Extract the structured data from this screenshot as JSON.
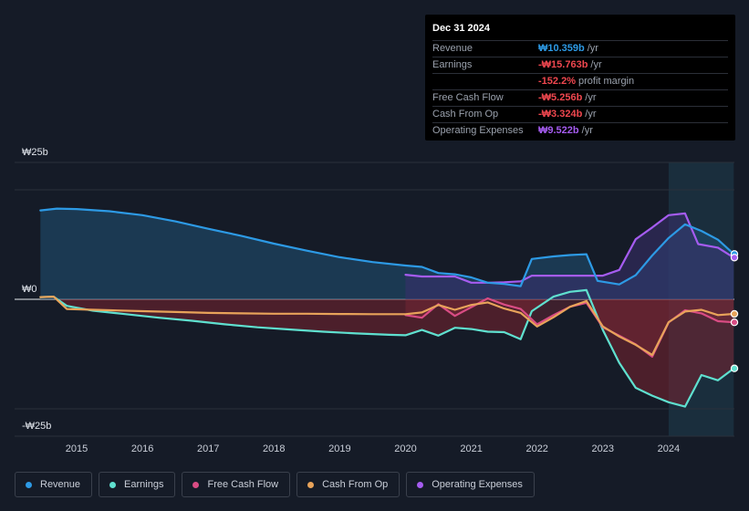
{
  "tooltip": {
    "date": "Dec 31 2024",
    "rows": [
      {
        "label": "Revenue",
        "value": "₩10.359b",
        "unit": "/yr",
        "color": "#2d9ae5"
      },
      {
        "label": "Earnings",
        "value": "-₩15.763b",
        "unit": "/yr",
        "color": "#f0474f"
      },
      {
        "label": "",
        "value": "-152.2%",
        "unit": "profit margin",
        "color": "#f0474f"
      },
      {
        "label": "Free Cash Flow",
        "value": "-₩5.256b",
        "unit": "/yr",
        "color": "#f0474f"
      },
      {
        "label": "Cash From Op",
        "value": "-₩3.324b",
        "unit": "/yr",
        "color": "#f0474f"
      },
      {
        "label": "Operating Expenses",
        "value": "₩9.522b",
        "unit": "/yr",
        "color": "#a55cf0"
      }
    ]
  },
  "legend": [
    {
      "label": "Revenue",
      "color": "#2d9ae5"
    },
    {
      "label": "Earnings",
      "color": "#5fe0cf"
    },
    {
      "label": "Free Cash Flow",
      "color": "#d94c84"
    },
    {
      "label": "Cash From Op",
      "color": "#e8a35a"
    },
    {
      "label": "Operating Expenses",
      "color": "#a55cf0"
    }
  ],
  "chart_data": {
    "type": "line",
    "title": "",
    "x_unit": "year",
    "xlim": [
      2014.45,
      2024.99
    ],
    "ylim": [
      -25,
      25
    ],
    "y_tick_labels": [
      {
        "value": 25,
        "label": "₩25b"
      },
      {
        "value": 0,
        "label": "₩0"
      },
      {
        "value": -25,
        "label": "-₩25b"
      }
    ],
    "x_tick_labels": [
      "2015",
      "2016",
      "2017",
      "2018",
      "2019",
      "2020",
      "2021",
      "2022",
      "2023",
      "2024"
    ],
    "highlight_region": [
      2024.0,
      2024.99
    ],
    "series": [
      {
        "name": "Revenue",
        "color": "#2d9ae5",
        "points": [
          [
            2014.45,
            20.3
          ],
          [
            2014.7,
            20.7
          ],
          [
            2015.0,
            20.6
          ],
          [
            2015.5,
            20.1
          ],
          [
            2016.0,
            19.2
          ],
          [
            2016.5,
            17.8
          ],
          [
            2017.0,
            16.1
          ],
          [
            2017.5,
            14.5
          ],
          [
            2018.0,
            12.7
          ],
          [
            2018.5,
            11.1
          ],
          [
            2019.0,
            9.6
          ],
          [
            2019.5,
            8.5
          ],
          [
            2020.0,
            7.7
          ],
          [
            2020.25,
            7.4
          ],
          [
            2020.5,
            6.0
          ],
          [
            2020.75,
            5.7
          ],
          [
            2021.0,
            5.0
          ],
          [
            2021.25,
            3.8
          ],
          [
            2021.5,
            3.5
          ],
          [
            2021.75,
            3.0
          ],
          [
            2021.92,
            9.2
          ],
          [
            2022.25,
            9.8
          ],
          [
            2022.5,
            10.1
          ],
          [
            2022.75,
            10.3
          ],
          [
            2022.92,
            4.2
          ],
          [
            2023.25,
            3.4
          ],
          [
            2023.5,
            5.5
          ],
          [
            2023.75,
            10.0
          ],
          [
            2024.0,
            14.0
          ],
          [
            2024.25,
            17.1
          ],
          [
            2024.5,
            15.6
          ],
          [
            2024.75,
            13.6
          ],
          [
            2024.99,
            10.359
          ]
        ]
      },
      {
        "name": "Earnings",
        "color": "#5fe0cf",
        "points": [
          [
            2014.45,
            0.5
          ],
          [
            2014.65,
            0.6
          ],
          [
            2014.85,
            -1.5
          ],
          [
            2015.25,
            -2.6
          ],
          [
            2015.75,
            -3.4
          ],
          [
            2016.25,
            -4.2
          ],
          [
            2016.75,
            -4.9
          ],
          [
            2017.25,
            -5.7
          ],
          [
            2017.75,
            -6.4
          ],
          [
            2018.25,
            -6.9
          ],
          [
            2018.75,
            -7.4
          ],
          [
            2019.25,
            -7.8
          ],
          [
            2019.75,
            -8.1
          ],
          [
            2020.0,
            -8.2
          ],
          [
            2020.25,
            -7.0
          ],
          [
            2020.5,
            -8.3
          ],
          [
            2020.75,
            -6.5
          ],
          [
            2021.0,
            -6.8
          ],
          [
            2021.25,
            -7.4
          ],
          [
            2021.5,
            -7.5
          ],
          [
            2021.75,
            -9.1
          ],
          [
            2021.92,
            -2.7
          ],
          [
            2022.25,
            0.6
          ],
          [
            2022.5,
            1.7
          ],
          [
            2022.75,
            2.1
          ],
          [
            2023.0,
            -7.0
          ],
          [
            2023.25,
            -14.5
          ],
          [
            2023.5,
            -20.2
          ],
          [
            2023.75,
            -22.0
          ],
          [
            2024.0,
            -23.5
          ],
          [
            2024.25,
            -24.5
          ],
          [
            2024.5,
            -17.3
          ],
          [
            2024.75,
            -18.5
          ],
          [
            2024.99,
            -15.763
          ]
        ]
      },
      {
        "name": "Free Cash Flow",
        "color": "#d94c84",
        "points": [
          [
            2020.0,
            -3.6
          ],
          [
            2020.25,
            -4.2
          ],
          [
            2020.5,
            -1.1
          ],
          [
            2020.75,
            -3.8
          ],
          [
            2021.0,
            -1.8
          ],
          [
            2021.25,
            0.2
          ],
          [
            2021.5,
            -1.2
          ],
          [
            2021.75,
            -2.2
          ],
          [
            2022.0,
            -5.7
          ],
          [
            2022.25,
            -3.6
          ],
          [
            2022.5,
            -1.7
          ],
          [
            2022.75,
            -0.8
          ],
          [
            2023.0,
            -6.4
          ],
          [
            2023.25,
            -8.3
          ],
          [
            2023.5,
            -10.3
          ],
          [
            2023.75,
            -13.1
          ],
          [
            2024.0,
            -5.3
          ],
          [
            2024.25,
            -2.5
          ],
          [
            2024.5,
            -3.2
          ],
          [
            2024.75,
            -5.0
          ],
          [
            2024.99,
            -5.256
          ]
        ]
      },
      {
        "name": "Cash From Op",
        "color": "#e8a35a",
        "points": [
          [
            2014.45,
            0.5
          ],
          [
            2014.65,
            0.6
          ],
          [
            2014.85,
            -2.2
          ],
          [
            2015.5,
            -2.5
          ],
          [
            2016.0,
            -2.7
          ],
          [
            2016.5,
            -2.9
          ],
          [
            2017.0,
            -3.1
          ],
          [
            2017.5,
            -3.2
          ],
          [
            2018.0,
            -3.3
          ],
          [
            2018.5,
            -3.3
          ],
          [
            2019.0,
            -3.35
          ],
          [
            2019.5,
            -3.4
          ],
          [
            2020.0,
            -3.4
          ],
          [
            2020.25,
            -3.0
          ],
          [
            2020.5,
            -1.3
          ],
          [
            2020.75,
            -2.4
          ],
          [
            2021.0,
            -1.3
          ],
          [
            2021.25,
            -0.7
          ],
          [
            2021.5,
            -2.1
          ],
          [
            2021.75,
            -3.1
          ],
          [
            2022.0,
            -6.2
          ],
          [
            2022.25,
            -4.1
          ],
          [
            2022.5,
            -1.7
          ],
          [
            2022.75,
            -0.4
          ],
          [
            2023.0,
            -6.2
          ],
          [
            2023.25,
            -8.5
          ],
          [
            2023.5,
            -10.4
          ],
          [
            2023.75,
            -12.7
          ],
          [
            2024.0,
            -5.2
          ],
          [
            2024.25,
            -2.8
          ],
          [
            2024.5,
            -2.4
          ],
          [
            2024.75,
            -3.6
          ],
          [
            2024.99,
            -3.324
          ]
        ]
      },
      {
        "name": "Operating Expenses",
        "color": "#a55cf0",
        "points": [
          [
            2020.0,
            5.6
          ],
          [
            2020.25,
            5.2
          ],
          [
            2020.5,
            5.2
          ],
          [
            2020.75,
            5.2
          ],
          [
            2021.0,
            3.8
          ],
          [
            2021.25,
            3.8
          ],
          [
            2021.5,
            3.9
          ],
          [
            2021.75,
            4.1
          ],
          [
            2021.92,
            5.4
          ],
          [
            2022.25,
            5.4
          ],
          [
            2022.5,
            5.4
          ],
          [
            2022.75,
            5.4
          ],
          [
            2023.0,
            5.4
          ],
          [
            2023.25,
            6.7
          ],
          [
            2023.5,
            13.7
          ],
          [
            2023.75,
            16.4
          ],
          [
            2024.0,
            19.2
          ],
          [
            2024.25,
            19.6
          ],
          [
            2024.45,
            12.6
          ],
          [
            2024.75,
            11.8
          ],
          [
            2024.99,
            9.522
          ]
        ]
      }
    ]
  }
}
